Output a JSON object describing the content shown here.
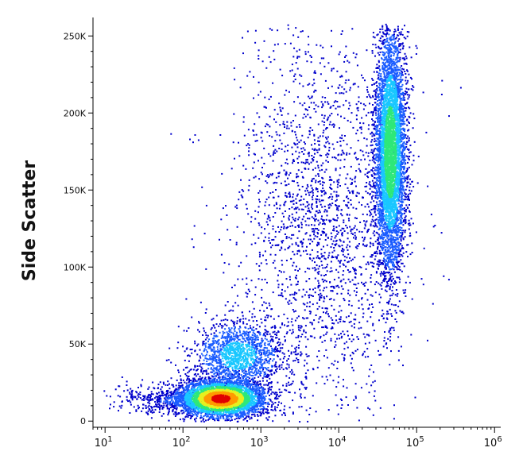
{
  "chart_data": {
    "type": "scatter",
    "subtype": "flow-cytometry density dot plot",
    "title": "",
    "xlabel": "",
    "ylabel": "Side Scatter",
    "x_scale": "log",
    "xlim": [
      7,
      1200000
    ],
    "ylim": [
      -4000,
      262000
    ],
    "x_ticks": [
      {
        "value": 10,
        "base": "10",
        "exp": "1"
      },
      {
        "value": 100,
        "base": "10",
        "exp": "2"
      },
      {
        "value": 1000,
        "base": "10",
        "exp": "3"
      },
      {
        "value": 10000,
        "base": "10",
        "exp": "4"
      },
      {
        "value": 100000,
        "base": "10",
        "exp": "5"
      },
      {
        "value": 1000000,
        "base": "10",
        "exp": "6"
      }
    ],
    "y_ticks": [
      {
        "value": 0,
        "label": "0"
      },
      {
        "value": 50000,
        "label": "50K"
      },
      {
        "value": 100000,
        "label": "100K"
      },
      {
        "value": 150000,
        "label": "150K"
      },
      {
        "value": 200000,
        "label": "200K"
      },
      {
        "value": 250000,
        "label": "250K"
      }
    ],
    "grid": false,
    "legend": "none",
    "colormap": [
      "#0000cc",
      "#1a5cff",
      "#19c7ff",
      "#2ee87a",
      "#e6f020",
      "#ff9a00",
      "#e00000"
    ],
    "populations": [
      {
        "center_x": 300,
        "center_y": 15000,
        "spread_x_decades": 0.28,
        "spread_y": 6000,
        "count": 4200,
        "peak_density": 1.0
      },
      {
        "center_x": 500,
        "center_y": 43000,
        "spread_x_decades": 0.28,
        "spread_y": 11000,
        "count": 1500,
        "peak_density": 0.35
      },
      {
        "center_x": 45000,
        "center_y": 175000,
        "spread_x_decades": 0.1,
        "spread_y": 40000,
        "count": 5200,
        "peak_density": 0.55
      },
      {
        "center_x": 5000,
        "center_y": 130000,
        "spread_x_decades": 0.55,
        "spread_y": 65000,
        "count": 2200,
        "peak_density": 0.08
      },
      {
        "center_x": 80,
        "center_y": 14000,
        "spread_x_decades": 0.35,
        "spread_y": 5000,
        "count": 500,
        "peak_density": 0.1
      }
    ]
  }
}
